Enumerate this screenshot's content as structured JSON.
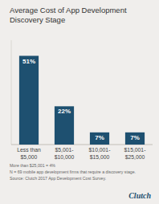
{
  "chart_data": {
    "type": "bar",
    "title": "Average Cost of App Development\nDiscovery Stage",
    "categories": [
      "Less than\n$5,000",
      "$5,001-\n$10,000",
      "$10,001-\n$15,000",
      "$15,001-\n$25,000"
    ],
    "values": [
      51,
      22,
      7,
      7
    ],
    "value_labels": [
      "51%",
      "22%",
      "7%",
      "7%"
    ],
    "data_labels": true,
    "color": "#1e5070",
    "ylim": [
      0,
      60
    ],
    "tick_labels": "x",
    "grid": false,
    "annotations": [
      "More than $25,001 = 4%",
      "N = 69 mobile app development firms that require a discovery stage.",
      "Source: Clutch 2017 App Development Cost Survey.",
      "Clutch"
    ]
  }
}
